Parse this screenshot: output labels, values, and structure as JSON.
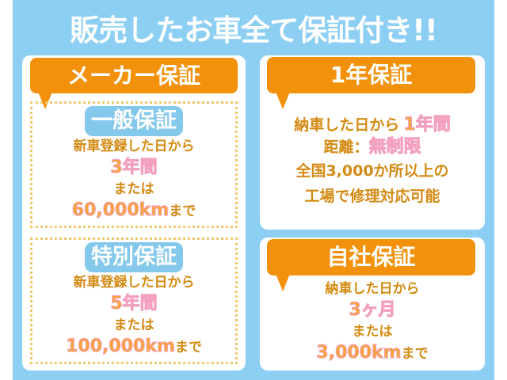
{
  "title": "販売したお車全て保証付き!!",
  "maker": {
    "header": "メーカー保証",
    "general": {
      "label": "一般保証",
      "line1": "新車登録した日から",
      "period": "3年間",
      "or": "または",
      "distance": "60,000km",
      "until": "まで"
    },
    "special": {
      "label": "特別保証",
      "line1": "新車登録した日から",
      "period": "5年間",
      "or": "または",
      "distance": "100,000km",
      "until": "まで"
    }
  },
  "one_year": {
    "header": "1年保証",
    "line1_prefix": "納車した日から",
    "line1_period": "1年間",
    "line2_prefix": "距離：",
    "line2_value": "無制限",
    "line3": "全国3,000か所以上の",
    "line4": "工場で修理対応可能"
  },
  "inhouse": {
    "header": "自社保証",
    "line1": "納車した日から",
    "period": "3ヶ月",
    "or": "または",
    "distance": "3,000km",
    "until": "まで"
  },
  "colors": {
    "background": "#8ccff3",
    "banner": "#f2920c",
    "label": "#84c8ec",
    "text": "#d48a12",
    "highlight": "#f7a434"
  }
}
